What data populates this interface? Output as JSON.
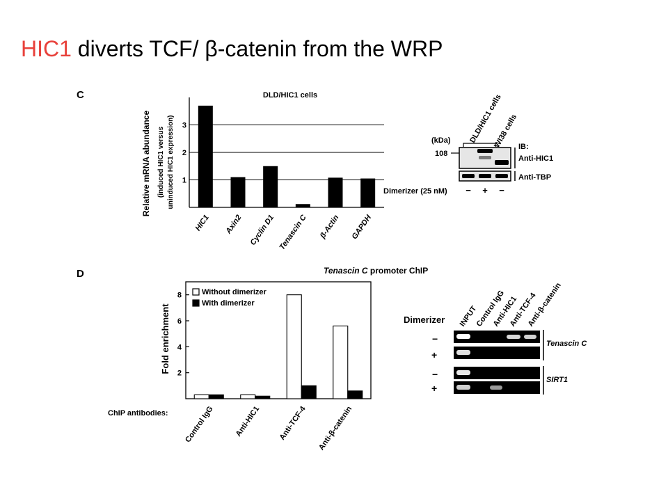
{
  "slide": {
    "title_highlight": "HIC1",
    "title_rest": " diverts TCF/ β-catenin from the WRP",
    "accent_color": "#e8413b"
  },
  "panel_c": {
    "letter": "C",
    "blot": {
      "lane_labels": [
        "DLD/HIC1 cells",
        "WI38 cells"
      ],
      "kda_label": "(kDa)",
      "marker": "108",
      "ib_label": "IB:",
      "band_labels": [
        "Anti-HIC1",
        "Anti-TBP"
      ],
      "treatment_label": "Dimerizer (25 nM)",
      "treatment_signs": [
        "−",
        "+",
        "−"
      ]
    }
  },
  "panel_d": {
    "letter": "D",
    "title": "Tenascin C promoter ChIP",
    "title_italic": "Tenascin C",
    "title_rest": " promoter ChIP",
    "chip_antibodies_label": "ChIP antibodies:",
    "gel": {
      "row_label": "Dimerizer",
      "lane_labels": [
        "INPUT",
        "Control IgG",
        "Anti-HIC1",
        "Anti-TCF-4",
        "Anti-β-catenin"
      ],
      "row_signs": [
        "−",
        "+",
        "−",
        "+"
      ],
      "gene_labels": [
        "Tenascin C",
        "SIRT1"
      ]
    }
  },
  "chart_data": [
    {
      "type": "bar",
      "title": "DLD/HIC1 cells",
      "ylabel": "Relative mRNA abundance",
      "ylabel_sub1": "(induced HIC1 versus",
      "ylabel_sub2": "uninduced HIC1  expression)",
      "categories": [
        "HIC1",
        "Axin2",
        "Cyclin D1",
        "Tenascin C",
        "β-Actin",
        "GAPDH"
      ],
      "values": [
        3.7,
        1.1,
        1.5,
        0.12,
        1.08,
        1.05
      ],
      "ylim": [
        0,
        4
      ],
      "yticks": [
        1,
        2,
        3
      ],
      "grid": true,
      "bar_color": "#000000"
    },
    {
      "type": "bar",
      "ylabel": "Fold enrichment",
      "categories": [
        "Control IgG",
        "Anti-HIC1",
        "Anti-TCF-4",
        "Anti-β-catenin"
      ],
      "series": [
        {
          "name": "Without dimerizer",
          "values": [
            0.3,
            0.3,
            8.0,
            5.6
          ],
          "color": "#ffffff"
        },
        {
          "name": "With dimerizer",
          "values": [
            0.3,
            0.2,
            1.0,
            0.6
          ],
          "color": "#000000"
        }
      ],
      "ylim": [
        0,
        9
      ],
      "yticks": [
        2,
        4,
        6,
        8
      ],
      "legend": "top-left",
      "grid": false
    }
  ]
}
